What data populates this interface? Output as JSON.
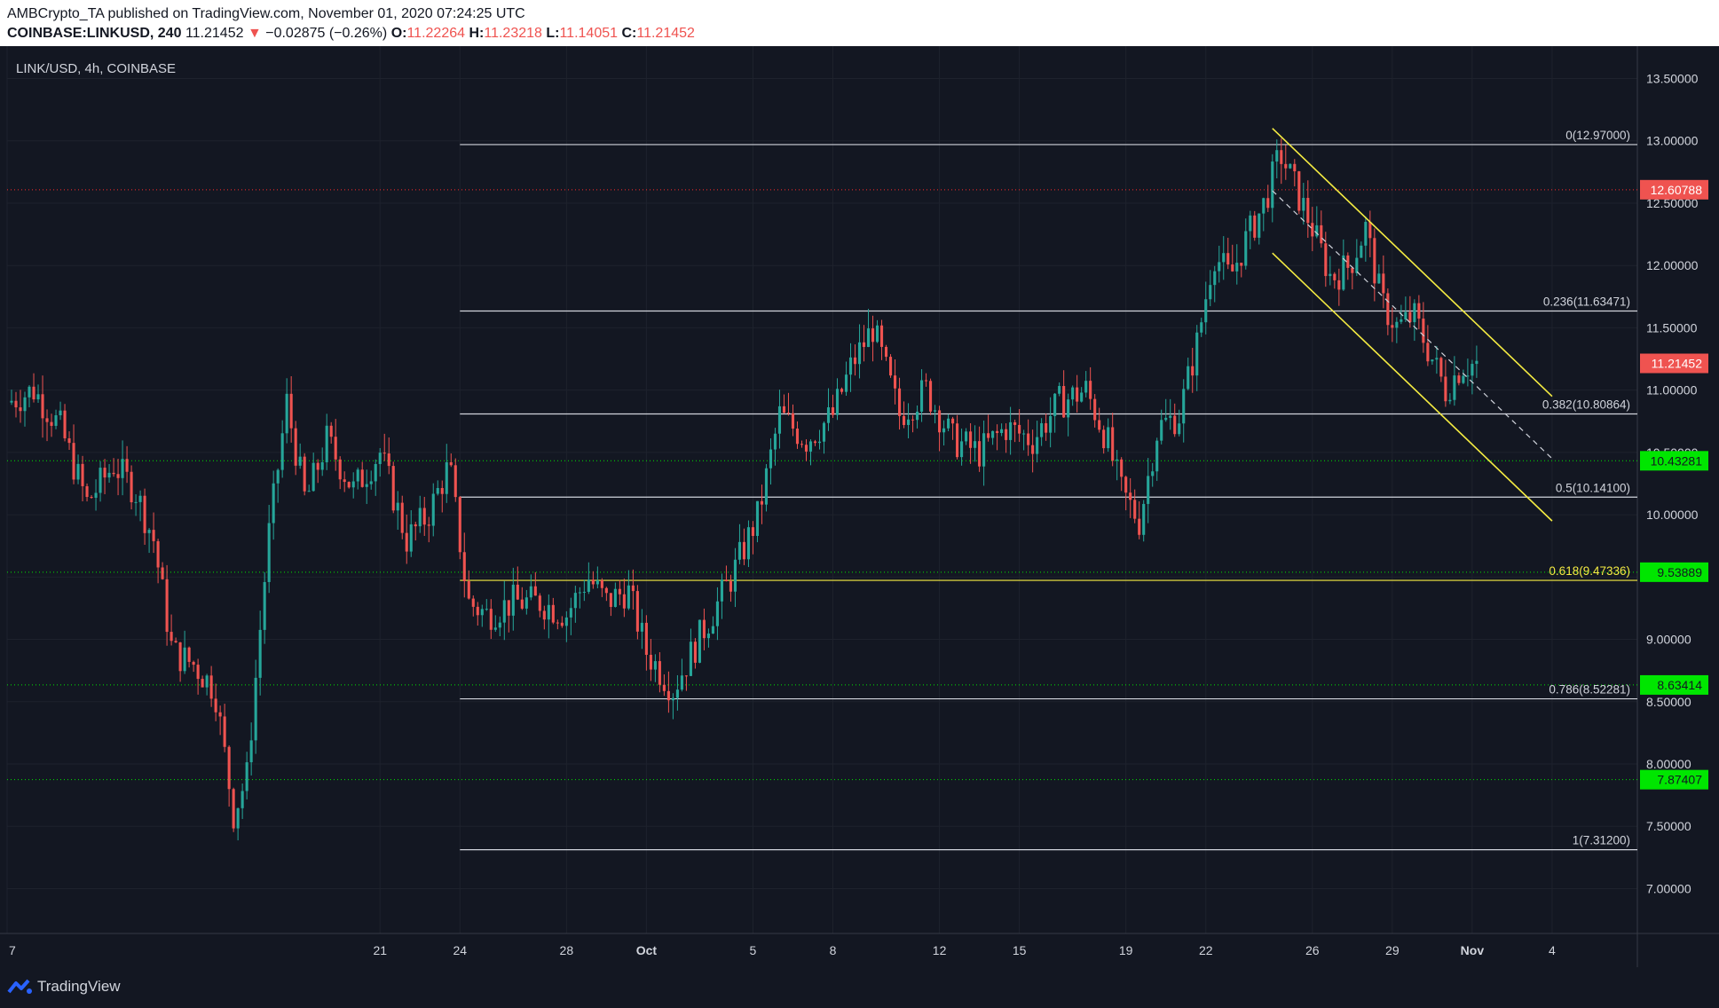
{
  "header": {
    "published_by": "AMBCrypto_TA published on TradingView.com, November 01, 2020 07:24:25 UTC",
    "symbol": "COINBASE:LINKUSD, 240",
    "price": "11.21452",
    "change_arrow": "▼",
    "change": "−0.02875 (−0.26%)",
    "open_label": "O:",
    "open": "11.22264",
    "high_label": "H:",
    "high": "11.23218",
    "low_label": "L:",
    "low": "11.14051",
    "close_label": "C:",
    "close": "11.21452"
  },
  "chart_label": "LINK/USD, 4h, COINBASE",
  "footer": {
    "brand": "TradingView"
  },
  "colors": {
    "background": "#131722",
    "up": "#26a69a",
    "down": "#ef5350",
    "fib": "#d1d4dc",
    "golden": "#f5ec42",
    "channel": "#f5ec42",
    "support": "#00e600",
    "resistance": "#ff2b2b",
    "grid": "#1e222d"
  },
  "chart_data": {
    "type": "candlestick",
    "ylim": [
      6.64,
      13.76
    ],
    "y_ticks": [
      "13.50000",
      "13.00000",
      "12.50000",
      "12.00000",
      "11.50000",
      "11.00000",
      "10.50000",
      "10.00000",
      "9.50000",
      "9.00000",
      "8.50000",
      "8.00000",
      "7.50000",
      "7.00000"
    ],
    "x_ticks": [
      {
        "label": "7",
        "day": 0
      },
      {
        "label": "21",
        "day": 14
      },
      {
        "label": "24",
        "day": 17
      },
      {
        "label": "28",
        "day": 21
      },
      {
        "label": "Oct",
        "day": 24
      },
      {
        "label": "5",
        "day": 28
      },
      {
        "label": "8",
        "day": 31
      },
      {
        "label": "12",
        "day": 35
      },
      {
        "label": "15",
        "day": 38
      },
      {
        "label": "19",
        "day": 42
      },
      {
        "label": "22",
        "day": 45
      },
      {
        "label": "26",
        "day": 49
      },
      {
        "label": "29",
        "day": 52
      },
      {
        "label": "Nov",
        "day": 55
      },
      {
        "label": "4",
        "day": 58
      }
    ],
    "xlim_days": [
      0,
      61.2
    ],
    "fib_levels": [
      {
        "label": "0(12.97000)",
        "value": 12.97,
        "golden": false
      },
      {
        "label": "0.236(11.63471)",
        "value": 11.63471,
        "golden": false
      },
      {
        "label": "0.382(10.80864)",
        "value": 10.80864,
        "golden": false
      },
      {
        "label": "0.5(10.14100)",
        "value": 10.141,
        "golden": false
      },
      {
        "label": "0.618(9.47336)",
        "value": 9.47336,
        "golden": true
      },
      {
        "label": "0.786(8.52281)",
        "value": 8.52281,
        "golden": false
      },
      {
        "label": "1(7.31200)",
        "value": 7.312,
        "golden": false
      }
    ],
    "fib_start_day": 17,
    "fib_end_day": 61.2,
    "horizontal_levels": [
      {
        "label": "12.60788",
        "value": 12.60788,
        "kind": "resistance"
      },
      {
        "label": "11.21452",
        "value": 11.21452,
        "kind": "current"
      },
      {
        "label": "10.43281",
        "value": 10.43281,
        "kind": "support"
      },
      {
        "label": "9.53889",
        "value": 9.53889,
        "kind": "support"
      },
      {
        "label": "8.63414",
        "value": 8.63414,
        "kind": "support"
      },
      {
        "label": "7.87407",
        "value": 7.87407,
        "kind": "support"
      }
    ],
    "channel": {
      "upper": [
        [
          47.5,
          13.1
        ],
        [
          58.0,
          10.95
        ]
      ],
      "lower": [
        [
          47.5,
          12.1
        ],
        [
          58.0,
          9.95
        ]
      ],
      "mid": [
        [
          47.5,
          12.6
        ],
        [
          58.0,
          10.45
        ]
      ]
    },
    "close_path": [
      [
        0,
        10.9
      ],
      [
        1.0,
        11.0
      ],
      [
        2.0,
        10.7
      ],
      [
        3.0,
        10.1
      ],
      [
        4.0,
        10.4
      ],
      [
        4.8,
        10.2
      ],
      [
        5.5,
        9.8
      ],
      [
        6.2,
        8.9
      ],
      [
        7.0,
        8.8
      ],
      [
        7.8,
        8.6
      ],
      [
        8.5,
        7.6
      ],
      [
        9.0,
        7.9
      ],
      [
        9.8,
        9.8
      ],
      [
        10.5,
        10.9
      ],
      [
        11.2,
        10.1
      ],
      [
        12.0,
        10.6
      ],
      [
        13.0,
        10.2
      ],
      [
        14.0,
        10.5
      ],
      [
        15.0,
        9.8
      ],
      [
        15.8,
        10.0
      ],
      [
        16.6,
        10.4
      ],
      [
        17.3,
        9.3
      ],
      [
        18.0,
        9.2
      ],
      [
        19.0,
        9.3
      ],
      [
        20.0,
        9.3
      ],
      [
        21.0,
        9.2
      ],
      [
        21.8,
        9.5
      ],
      [
        22.5,
        9.3
      ],
      [
        23.3,
        9.4
      ],
      [
        24.0,
        8.9
      ],
      [
        25.0,
        8.6
      ],
      [
        26.2,
        9.1
      ],
      [
        27.2,
        9.5
      ],
      [
        28.2,
        10.0
      ],
      [
        29.0,
        10.8
      ],
      [
        30.0,
        10.6
      ],
      [
        31.0,
        10.8
      ],
      [
        31.7,
        11.2
      ],
      [
        32.5,
        11.5
      ],
      [
        33.5,
        10.8
      ],
      [
        34.5,
        11.0
      ],
      [
        35.5,
        10.6
      ],
      [
        36.5,
        10.5
      ],
      [
        37.5,
        10.7
      ],
      [
        38.5,
        10.6
      ],
      [
        39.5,
        10.9
      ],
      [
        40.5,
        11.0
      ],
      [
        41.3,
        10.6
      ],
      [
        41.8,
        10.2
      ],
      [
        42.5,
        9.95
      ],
      [
        43.2,
        10.7
      ],
      [
        44.0,
        10.8
      ],
      [
        44.7,
        11.4
      ],
      [
        45.3,
        12.1
      ],
      [
        45.9,
        11.9
      ],
      [
        46.5,
        12.2
      ],
      [
        47.2,
        12.5
      ],
      [
        47.8,
        12.9
      ],
      [
        48.4,
        12.6
      ],
      [
        49.0,
        12.3
      ],
      [
        49.7,
        11.9
      ],
      [
        50.4,
        12.0
      ],
      [
        51.0,
        12.3
      ],
      [
        51.6,
        11.7
      ],
      [
        52.2,
        11.5
      ],
      [
        52.8,
        11.6
      ],
      [
        53.4,
        11.3
      ],
      [
        54.0,
        11.0
      ],
      [
        54.6,
        11.2
      ],
      [
        55.2,
        11.21
      ]
    ]
  }
}
